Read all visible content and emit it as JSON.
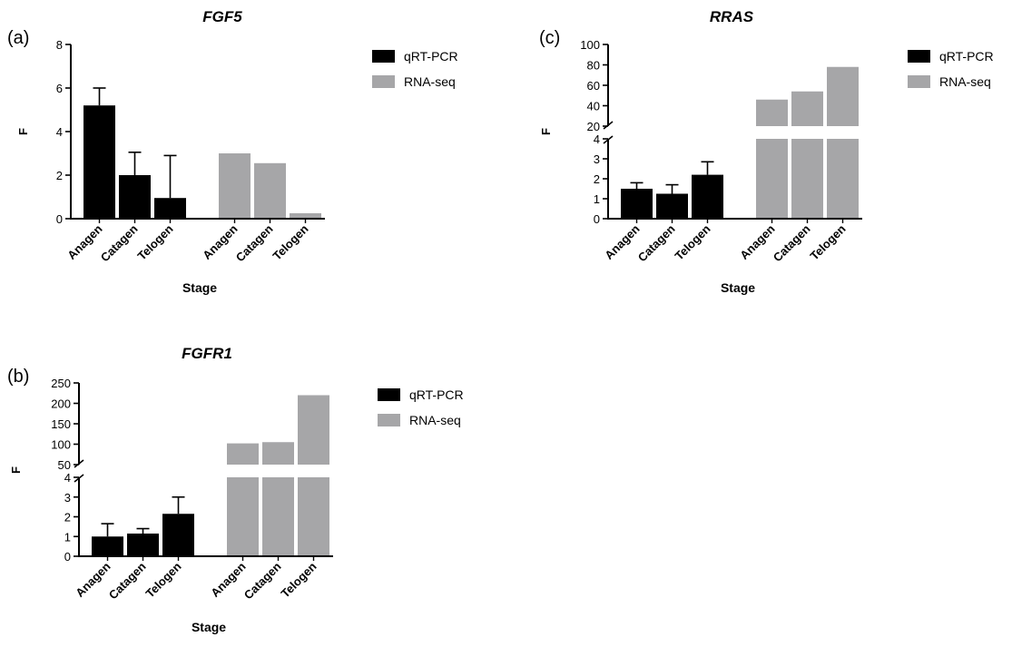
{
  "colors": {
    "qpcr": "#000000",
    "rnaseq": "#a6a6a8",
    "axis": "#000000"
  },
  "chart_data": [
    {
      "id": "a",
      "panel_label": "(a)",
      "title": "FGF5",
      "type": "bar",
      "xlabel": "Stage",
      "ylabel": "F",
      "categories": [
        "Anagen",
        "Catagen",
        "Telogen"
      ],
      "ylim": [
        0,
        8
      ],
      "yticks": [
        0,
        2,
        4,
        6,
        8
      ],
      "broken_axis": false,
      "legend": [
        "qRT-PCR",
        "RNA-seq"
      ],
      "legend_position": "right",
      "series": [
        {
          "name": "qRT-PCR",
          "values": [
            5.2,
            2.0,
            0.95
          ],
          "error": [
            0.8,
            1.05,
            1.95
          ]
        },
        {
          "name": "RNA-seq",
          "values": [
            3.0,
            2.55,
            0.25
          ]
        }
      ]
    },
    {
      "id": "b",
      "panel_label": "(b)",
      "title": "FGFR1",
      "type": "bar",
      "xlabel": "Stage",
      "ylabel": "F",
      "categories": [
        "Anagen",
        "Catagen",
        "Telogen"
      ],
      "broken_axis": true,
      "ylim_lower": [
        0,
        4
      ],
      "yticks_lower": [
        0,
        1,
        2,
        3,
        4
      ],
      "ylim_upper": [
        50,
        250
      ],
      "yticks_upper": [
        50,
        100,
        150,
        200,
        250
      ],
      "legend": [
        "qRT-PCR",
        "RNA-seq"
      ],
      "legend_position": "right",
      "series": [
        {
          "name": "qRT-PCR",
          "values": [
            1.0,
            1.15,
            2.15
          ],
          "error": [
            0.65,
            0.25,
            0.85
          ]
        },
        {
          "name": "RNA-seq",
          "values": [
            102,
            105,
            220
          ]
        }
      ]
    },
    {
      "id": "c",
      "panel_label": "(c)",
      "title": "RRAS",
      "type": "bar",
      "xlabel": "Stage",
      "ylabel": "F",
      "categories": [
        "Anagen",
        "Catagen",
        "Telogen"
      ],
      "broken_axis": true,
      "ylim_lower": [
        0,
        4
      ],
      "yticks_lower": [
        0,
        1,
        2,
        3,
        4
      ],
      "ylim_upper": [
        20,
        100
      ],
      "yticks_upper": [
        20,
        40,
        60,
        80,
        100
      ],
      "legend": [
        "qRT-PCR",
        "RNA-seq"
      ],
      "legend_position": "right",
      "series": [
        {
          "name": "qRT-PCR",
          "values": [
            1.5,
            1.25,
            2.2
          ],
          "error": [
            0.3,
            0.45,
            0.65
          ]
        },
        {
          "name": "RNA-seq",
          "values": [
            46,
            54,
            78
          ]
        }
      ]
    }
  ]
}
